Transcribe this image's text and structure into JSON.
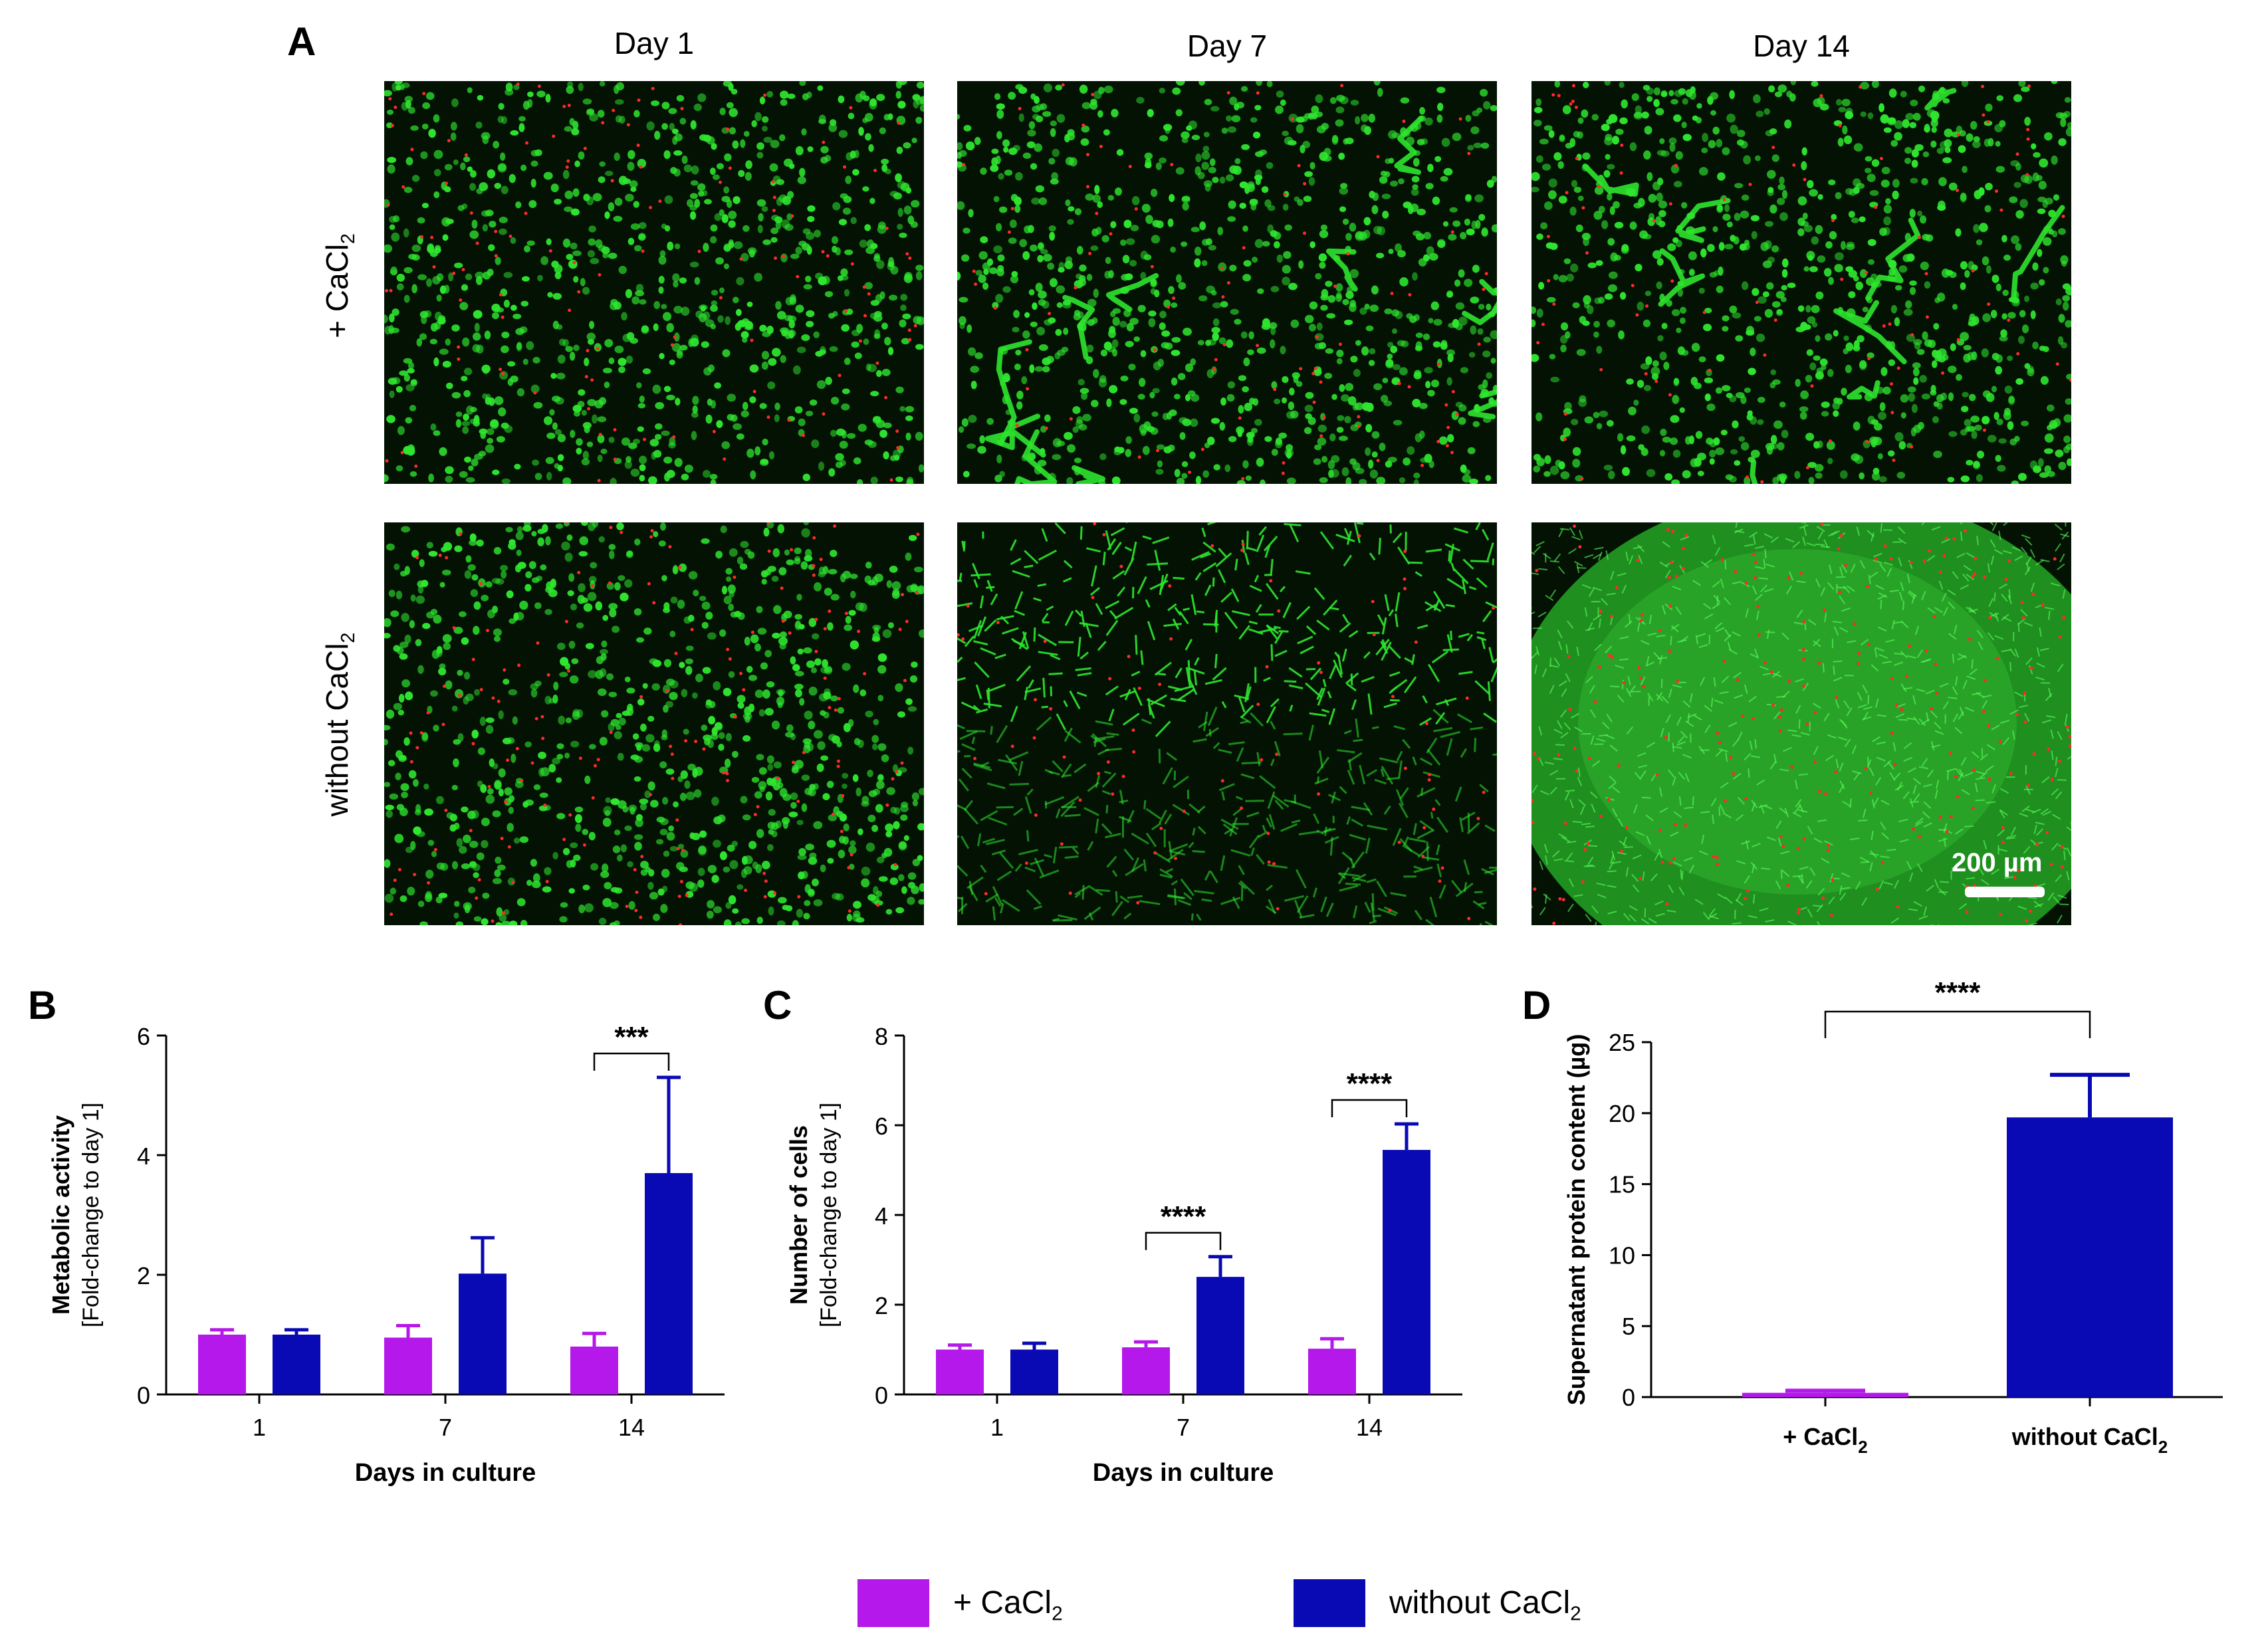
{
  "panels": {
    "A": "A",
    "B": "B",
    "C": "C",
    "D": "D"
  },
  "microscopy": {
    "columns": [
      "Day 1",
      "Day 7",
      "Day 14"
    ],
    "rows": [
      {
        "prefix": "+ CaCl",
        "subscript": "2"
      },
      {
        "prefix": "without CaCl",
        "subscript": "2"
      }
    ],
    "scale_bar": "200 µm",
    "colors": {
      "live": "#2fe62f",
      "dead": "#ff2a2a",
      "background": "#031203"
    }
  },
  "colors": {
    "with_cacl2": "#b418ea",
    "without_cacl2": "#0a0ab4"
  },
  "legend": [
    {
      "prefix": "+ CaCl",
      "subscript": "2",
      "color": "#b418ea"
    },
    {
      "prefix": "without CaCl",
      "subscript": "2",
      "color": "#0a0ab4"
    }
  ],
  "chart_data": [
    {
      "panel": "B",
      "type": "bar",
      "categories": [
        "1",
        "7",
        "14"
      ],
      "xlabel": "Days in culture",
      "ylabel": [
        "Metabolic activity",
        "[Fold-change to day 1]"
      ],
      "ylim": [
        0,
        6
      ],
      "yticks": [
        0,
        2,
        4,
        6
      ],
      "series": [
        {
          "name": "+ CaCl2",
          "values": [
            1.0,
            0.95,
            0.8
          ],
          "errors": [
            0.08,
            0.2,
            0.22
          ]
        },
        {
          "name": "without CaCl2",
          "values": [
            1.0,
            2.02,
            3.7
          ],
          "errors": [
            0.08,
            0.6,
            1.6
          ]
        }
      ],
      "significance": [
        {
          "category": "14",
          "label": "***"
        }
      ]
    },
    {
      "panel": "C",
      "type": "bar",
      "categories": [
        "1",
        "7",
        "14"
      ],
      "xlabel": "Days in culture",
      "ylabel": [
        "Number of cells",
        "[Fold-change to day 1]"
      ],
      "ylim": [
        0,
        8
      ],
      "yticks": [
        0,
        2,
        4,
        6,
        8
      ],
      "series": [
        {
          "name": "+ CaCl2",
          "values": [
            1.0,
            1.05,
            1.02
          ],
          "errors": [
            0.1,
            0.12,
            0.22
          ]
        },
        {
          "name": "without CaCl2",
          "values": [
            1.0,
            2.62,
            5.45
          ],
          "errors": [
            0.14,
            0.45,
            0.58
          ]
        }
      ],
      "significance": [
        {
          "category": "7",
          "label": "****"
        },
        {
          "category": "14",
          "label": "****"
        }
      ]
    },
    {
      "panel": "D",
      "type": "bar",
      "categories": [
        "+ CaCl2",
        "without CaCl2"
      ],
      "category_labels": [
        {
          "prefix": "+ CaCl",
          "subscript": "2"
        },
        {
          "prefix": "without CaCl",
          "subscript": "2"
        }
      ],
      "ylabel": [
        "Supernatant protein content (µg)"
      ],
      "ylim": [
        0,
        25
      ],
      "yticks": [
        0,
        5,
        10,
        15,
        20,
        25
      ],
      "values": [
        0.3,
        19.7
      ],
      "errors": [
        0.15,
        3.0
      ],
      "significance": [
        {
          "between": [
            "+ CaCl2",
            "without CaCl2"
          ],
          "label": "****"
        }
      ]
    }
  ]
}
